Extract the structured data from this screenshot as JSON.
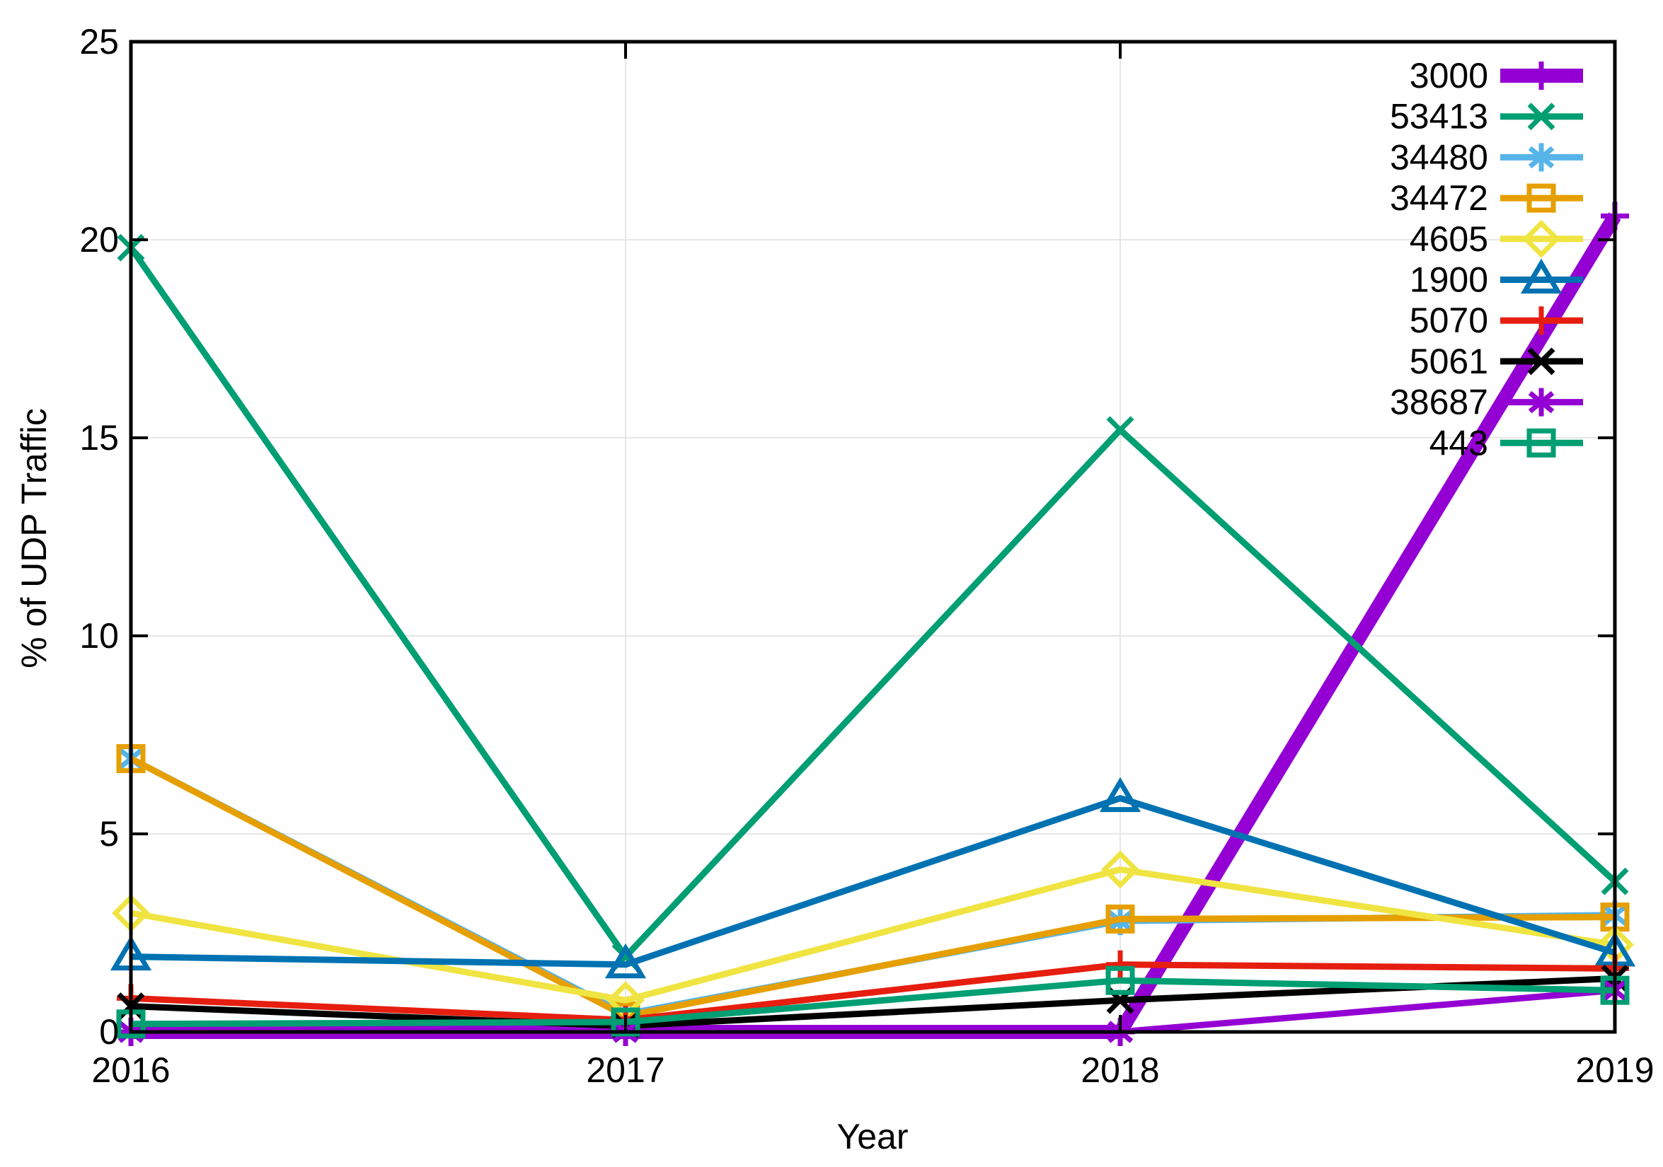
{
  "chart_data": {
    "type": "line",
    "x": [
      2016,
      2017,
      2018,
      2019
    ],
    "x_tick_labels": [
      "2016",
      "2017",
      "2018",
      "2019"
    ],
    "y_tick_labels": [
      "0",
      "5",
      "10",
      "15",
      "20",
      "25"
    ],
    "xlabel": "Year",
    "ylabel": "% of UDP Traffic",
    "xlim": [
      2016,
      2019
    ],
    "ylim": [
      0,
      25
    ],
    "grid": true,
    "legend_position": "top-right-inside",
    "colors": {
      "grid": "#e6e6e6",
      "axis": "#000000"
    },
    "series": [
      {
        "name": "3000",
        "color": "#9400d3",
        "marker": "plus",
        "line_width": 20,
        "values": [
          0.0,
          0.0,
          0.0,
          20.6
        ]
      },
      {
        "name": "53413",
        "color": "#009e73",
        "marker": "x",
        "line_width": 9,
        "values": [
          19.8,
          1.9,
          15.2,
          3.8
        ]
      },
      {
        "name": "34480",
        "color": "#56b4e9",
        "marker": "asterisk",
        "line_width": 9,
        "values": [
          6.9,
          0.45,
          2.8,
          2.95
        ]
      },
      {
        "name": "34472",
        "color": "#e69f00",
        "marker": "square-open",
        "line_width": 9,
        "values": [
          6.9,
          0.4,
          2.85,
          2.9
        ]
      },
      {
        "name": "4605",
        "color": "#f0e442",
        "marker": "diamond-open",
        "line_width": 9,
        "values": [
          3.0,
          0.8,
          4.1,
          2.2
        ]
      },
      {
        "name": "1900",
        "color": "#0072b2",
        "marker": "triangle-open",
        "line_width": 9,
        "values": [
          1.9,
          1.7,
          5.9,
          2.0
        ]
      },
      {
        "name": "5070",
        "color": "#e51e10",
        "marker": "plus",
        "line_width": 9,
        "values": [
          0.85,
          0.3,
          1.7,
          1.6
        ]
      },
      {
        "name": "5061",
        "color": "#000000",
        "marker": "x",
        "line_width": 9,
        "values": [
          0.65,
          0.15,
          0.8,
          1.35
        ]
      },
      {
        "name": "38687",
        "color": "#9400d3",
        "marker": "asterisk",
        "line_width": 9,
        "values": [
          0.0,
          0.0,
          0.0,
          1.05
        ]
      },
      {
        "name": "443",
        "color": "#009e73",
        "marker": "square-open",
        "line_width": 9,
        "values": [
          0.2,
          0.25,
          1.3,
          1.05
        ]
      }
    ]
  }
}
